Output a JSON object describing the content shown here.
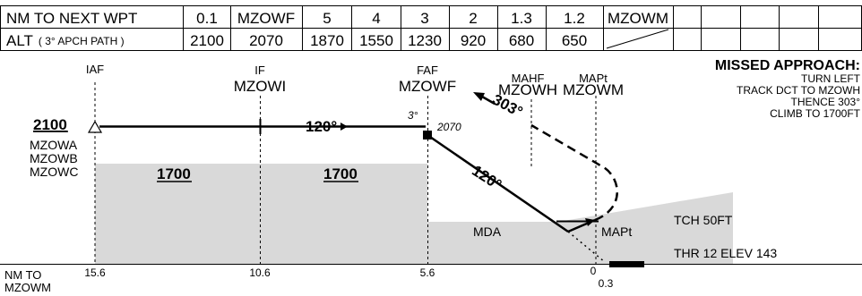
{
  "table": {
    "row1_label": "NM TO NEXT WPT",
    "row1_values": [
      "0.1",
      "MZOWF",
      "5",
      "4",
      "3",
      "2",
      "1.3",
      "1.2",
      "MZOWM",
      "",
      "",
      "",
      ""
    ],
    "row2_label_main": "ALT",
    "row2_label_sub": "( 3° APCH PATH )",
    "row2_values": [
      "2100",
      "2070",
      "1870",
      "1550",
      "1230",
      "920",
      "680",
      "650",
      "",
      "",
      "",
      "",
      ""
    ]
  },
  "profile": {
    "fixes": {
      "iaf": "IAF",
      "if_type": "IF",
      "if_name": "MZOWI",
      "faf_type": "FAF",
      "faf_name": "MZOWF",
      "mahf_type": "MAHF",
      "mahf_name": "MZOWH",
      "mapt_type": "MAPt",
      "mapt_name": "MZOWM"
    },
    "start_alt": "2100",
    "waypoints_list": [
      "MZOWA",
      "MZOWB",
      "MZOWC"
    ],
    "msa_left": "1700",
    "msa_right": "1700",
    "course_inbound_1": "120°",
    "course_inbound_2": "120°",
    "course_missed": "303°",
    "glide_angle": "3°",
    "faf_alt": "2070",
    "mda": "MDA",
    "mapt_label": "MAPt",
    "tch": "TCH 50FT",
    "thr": "THR 12 ELEV 143"
  },
  "missed": {
    "title": "MISSED APPROACH:",
    "lines": [
      "TURN LEFT",
      "TRACK DCT TO MZOWH",
      "THENCE 303°",
      "CLIMB TO 1700FT"
    ]
  },
  "distance_axis": {
    "label_line1": "NM TO",
    "label_line2": "MZOWM",
    "ticks": [
      "15.6",
      "10.6",
      "5.6",
      "0"
    ],
    "extra_tick": "0.3"
  }
}
